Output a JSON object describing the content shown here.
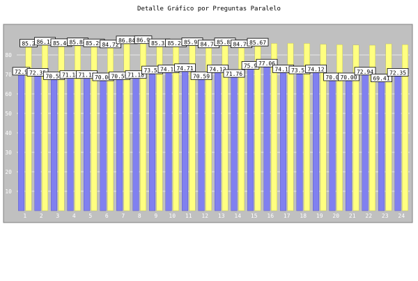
{
  "chart_data": {
    "type": "bar",
    "title": "Detalle Gráfico por Preguntas Paralelo",
    "xlabel": "",
    "ylabel": "",
    "ylim": [
      0,
      95
    ],
    "yticks": [
      10,
      20,
      30,
      40,
      50,
      60,
      70,
      80
    ],
    "grid": true,
    "categories": [
      "1",
      "2",
      "3",
      "4",
      "5",
      "6",
      "7",
      "8",
      "9",
      "10",
      "11",
      "12",
      "13",
      "14",
      "15",
      "16",
      "17",
      "18",
      "19",
      "20",
      "21",
      "22",
      "23",
      "24"
    ],
    "series": [
      {
        "color": "#8080f0",
        "values": [
          72.9,
          72.35,
          70.59,
          71.18,
          71.18,
          70.0,
          70.59,
          71.18,
          73.53,
          74.12,
          74.71,
          70.59,
          74.12,
          71.76,
          75.9,
          77.06,
          74.12,
          73.53,
          74.12,
          70.0,
          70.0,
          72.94,
          69.41,
          72.35
        ],
        "labels": [
          "72.9",
          "72.35",
          "70.59",
          "71.18",
          "71.18",
          "70.00",
          "70.59",
          "71.18",
          "73.53",
          "74.12",
          "74.71",
          "70.59",
          "74.12",
          "71.76",
          "75.9",
          "77.06",
          "74.12",
          "73.53",
          "74.12",
          "70.0",
          "70.00",
          "72.94",
          "69.41",
          "72.35"
        ]
      },
      {
        "color": "#ffff80",
        "values": [
          85.2,
          86.14,
          85.4,
          85.84,
          85.29,
          84.72,
          86.84,
          86.9,
          85.33,
          85.28,
          85.93,
          84.74,
          85.83,
          84.79,
          85.67,
          85.9,
          86.0,
          85.9,
          85.5,
          85.3,
          85.1,
          85.0,
          85.7,
          85.3
        ],
        "labels": [
          "85.2",
          "86.14",
          "85.40",
          "85.84",
          "85.29",
          "84.72",
          "86.84",
          "86.9",
          "85.33",
          "85.28",
          "85.93",
          "84.74",
          "85.83",
          "84.79",
          "85.67",
          "",
          "",
          "",
          "",
          "",
          "",
          "",
          "",
          ""
        ]
      }
    ]
  }
}
